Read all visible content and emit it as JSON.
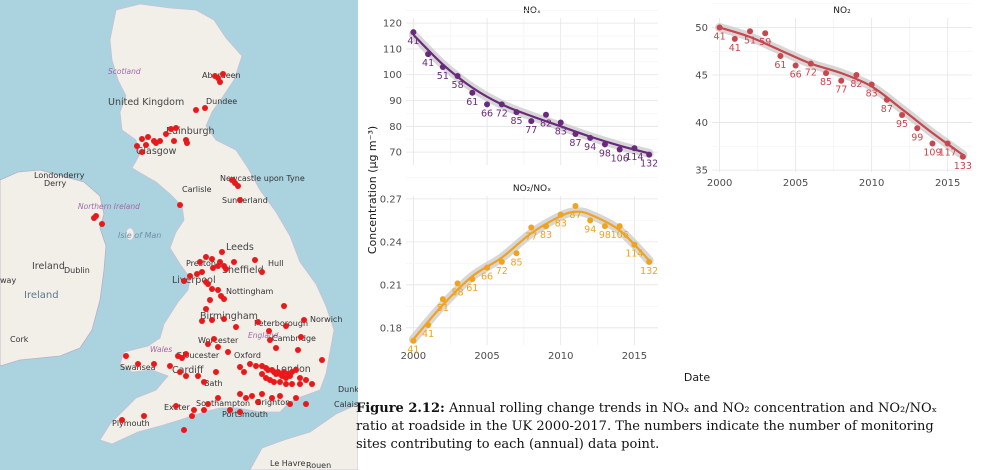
{
  "map": {
    "labels": {
      "scotland": "Scotland",
      "aberdeen": "Aberdeen",
      "uk": "United Kingdom",
      "dundee": "Dundee",
      "edinburgh": "Edinburgh",
      "glasgow": "Glasgow",
      "londonderry": "Londonderry",
      "derry": "Derry",
      "northern_ireland": "Northern Ireland",
      "newcastle": "Newcastle upon Tyne",
      "carlisle": "Carlisle",
      "sunderland": "Sunderland",
      "isle_of_man": "Isle of Man",
      "leeds": "Leeds",
      "preston": "Preston",
      "hull": "Hull",
      "ireland_top": "Ireland",
      "dublin": "Dublin",
      "sheffield": "Sheffield",
      "liverpool": "Liverpool",
      "way": "way",
      "ireland": "Ireland",
      "nottingham": "Nottingham",
      "birmingham": "Birmingham",
      "norwich": "Norwich",
      "peterborough": "Peterborough",
      "cork": "Cork",
      "worcester": "Worcester",
      "england": "England",
      "cambridge": "Cambridge",
      "wales": "Wales",
      "gloucester": "Gloucester",
      "oxford": "Oxford",
      "swansea": "Swansea",
      "cardiff": "Cardiff",
      "bath": "Bath",
      "london": "London",
      "southampton": "Southampton",
      "exeter": "Exeter",
      "brighton": "Brighton",
      "portsmouth": "Portsmouth",
      "plymouth": "Plymouth",
      "dunker": "Dunker",
      "calais": "Calais",
      "le_havre": "Le Havre",
      "rouen": "Rouen"
    },
    "colors": {
      "sea": "#aad3df",
      "land": "#f2efe9",
      "site": "#e8191b"
    }
  },
  "chart_data": [
    {
      "type": "scatter",
      "title": "NOₓ",
      "xlabel": "",
      "ylabel": "Concentration (µg m⁻³)",
      "x_ticks": [],
      "y_ticks": [
        "70",
        "80",
        "90",
        "100",
        "110",
        "120"
      ],
      "ylim": [
        65,
        122
      ],
      "xlim": [
        1999.5,
        2016.6
      ],
      "color": "#6a2a7c",
      "series": [
        {
          "points": [
            {
              "x": 2000,
              "y": 116.5,
              "n": "41"
            },
            {
              "x": 2001,
              "y": 108,
              "n": "41"
            },
            {
              "x": 2002,
              "y": 103,
              "n": "51"
            },
            {
              "x": 2003,
              "y": 99.5,
              "n": "58"
            },
            {
              "x": 2004,
              "y": 93,
              "n": "61"
            },
            {
              "x": 2005,
              "y": 88.5,
              "n": "66"
            },
            {
              "x": 2006,
              "y": 88.5,
              "n": "72"
            },
            {
              "x": 2007,
              "y": 85.5,
              "n": "85"
            },
            {
              "x": 2008,
              "y": 82,
              "n": "77"
            },
            {
              "x": 2009,
              "y": 84.5,
              "n": "82"
            },
            {
              "x": 2010,
              "y": 81.5,
              "n": "83"
            },
            {
              "x": 2011,
              "y": 77,
              "n": "87"
            },
            {
              "x": 2012,
              "y": 75.5,
              "n": "94"
            },
            {
              "x": 2013,
              "y": 73,
              "n": "98"
            },
            {
              "x": 2014,
              "y": 71,
              "n": "106"
            },
            {
              "x": 2015,
              "y": 71.5,
              "n": "114"
            },
            {
              "x": 2016,
              "y": 69,
              "n": "132"
            }
          ],
          "trend": [
            [
              2000,
              115.5
            ],
            [
              2002,
              104
            ],
            [
              2004,
              95
            ],
            [
              2006,
              88.5
            ],
            [
              2008,
              84
            ],
            [
              2010,
              80
            ],
            [
              2012,
              76
            ],
            [
              2014,
              72.5
            ],
            [
              2016,
              69.5
            ]
          ]
        }
      ]
    },
    {
      "type": "scatter",
      "title": "NO₂",
      "xlabel": "",
      "ylabel": "",
      "x_ticks": [
        "2000",
        "2005",
        "2010",
        "2015"
      ],
      "y_ticks": [
        "35",
        "40",
        "45",
        "50"
      ],
      "ylim": [
        34.8,
        51
      ],
      "xlim": [
        1999.5,
        2016.6
      ],
      "color": "#c8464e",
      "series": [
        {
          "points": [
            {
              "x": 2000,
              "y": 50,
              "n": "41"
            },
            {
              "x": 2001,
              "y": 48.8,
              "n": "41"
            },
            {
              "x": 2002,
              "y": 49.6,
              "n": "51"
            },
            {
              "x": 2003,
              "y": 49.4,
              "n": "59"
            },
            {
              "x": 2004,
              "y": 47,
              "n": "61"
            },
            {
              "x": 2005,
              "y": 46,
              "n": "66"
            },
            {
              "x": 2006,
              "y": 46.2,
              "n": "72"
            },
            {
              "x": 2007,
              "y": 45.2,
              "n": "85"
            },
            {
              "x": 2008,
              "y": 44.4,
              "n": "77"
            },
            {
              "x": 2009,
              "y": 45,
              "n": "82"
            },
            {
              "x": 2010,
              "y": 44,
              "n": "83"
            },
            {
              "x": 2011,
              "y": 42.4,
              "n": "87"
            },
            {
              "x": 2012,
              "y": 40.8,
              "n": "95"
            },
            {
              "x": 2013,
              "y": 39.4,
              "n": "99"
            },
            {
              "x": 2014,
              "y": 37.8,
              "n": "109"
            },
            {
              "x": 2015,
              "y": 37.8,
              "n": "117"
            },
            {
              "x": 2016,
              "y": 36.4,
              "n": "133"
            }
          ],
          "trend": [
            [
              2000,
              50
            ],
            [
              2002,
              49
            ],
            [
              2004,
              47.6
            ],
            [
              2006,
              46.2
            ],
            [
              2008,
              45.2
            ],
            [
              2010,
              43.8
            ],
            [
              2012,
              41.4
            ],
            [
              2014,
              38.9
            ],
            [
              2016,
              36.6
            ]
          ]
        }
      ]
    },
    {
      "type": "scatter",
      "title": "NO₂/NOₓ",
      "xlabel": "Date",
      "ylabel": "",
      "x_ticks": [
        "2000",
        "2005",
        "2010",
        "2015"
      ],
      "y_ticks": [
        "0.18",
        "0.21",
        "0.24",
        "0.27"
      ],
      "ylim": [
        0.168,
        0.272
      ],
      "xlim": [
        1999.5,
        2016.6
      ],
      "color": "#f0a31d",
      "series": [
        {
          "points": [
            {
              "x": 2000,
              "y": 0.171,
              "n": "41"
            },
            {
              "x": 2001,
              "y": 0.182,
              "n": "41"
            },
            {
              "x": 2002,
              "y": 0.2,
              "n": "51"
            },
            {
              "x": 2003,
              "y": 0.211,
              "n": "58"
            },
            {
              "x": 2004,
              "y": 0.214,
              "n": "61"
            },
            {
              "x": 2005,
              "y": 0.222,
              "n": "66"
            },
            {
              "x": 2006,
              "y": 0.226,
              "n": "72"
            },
            {
              "x": 2007,
              "y": 0.232,
              "n": "85"
            },
            {
              "x": 2008,
              "y": 0.25,
              "n": "77"
            },
            {
              "x": 2009,
              "y": 0.251,
              "n": "83"
            },
            {
              "x": 2010,
              "y": 0.259,
              "n": "83"
            },
            {
              "x": 2011,
              "y": 0.265,
              "n": "87"
            },
            {
              "x": 2012,
              "y": 0.255,
              "n": "94"
            },
            {
              "x": 2013,
              "y": 0.251,
              "n": "98"
            },
            {
              "x": 2014,
              "y": 0.251,
              "n": "106"
            },
            {
              "x": 2015,
              "y": 0.238,
              "n": "114"
            },
            {
              "x": 2016,
              "y": 0.226,
              "n": "132"
            }
          ],
          "trend": [
            [
              2000,
              0.172
            ],
            [
              2002,
              0.196
            ],
            [
              2004,
              0.216
            ],
            [
              2006,
              0.229
            ],
            [
              2008,
              0.246
            ],
            [
              2010,
              0.258
            ],
            [
              2011,
              0.261
            ],
            [
              2012,
              0.259
            ],
            [
              2014,
              0.248
            ],
            [
              2016,
              0.227
            ]
          ]
        }
      ]
    }
  ],
  "caption": {
    "label": "Figure 2.12:",
    "line1": "Annual rolling change trends in NOₓ and NO₂ concentration and NO₂/NOₓ",
    "line2": "ratio at roadside in the UK 2000-2017. The numbers indicate the number of monitoring",
    "line3": "sites contributing to each (annual) data point."
  }
}
